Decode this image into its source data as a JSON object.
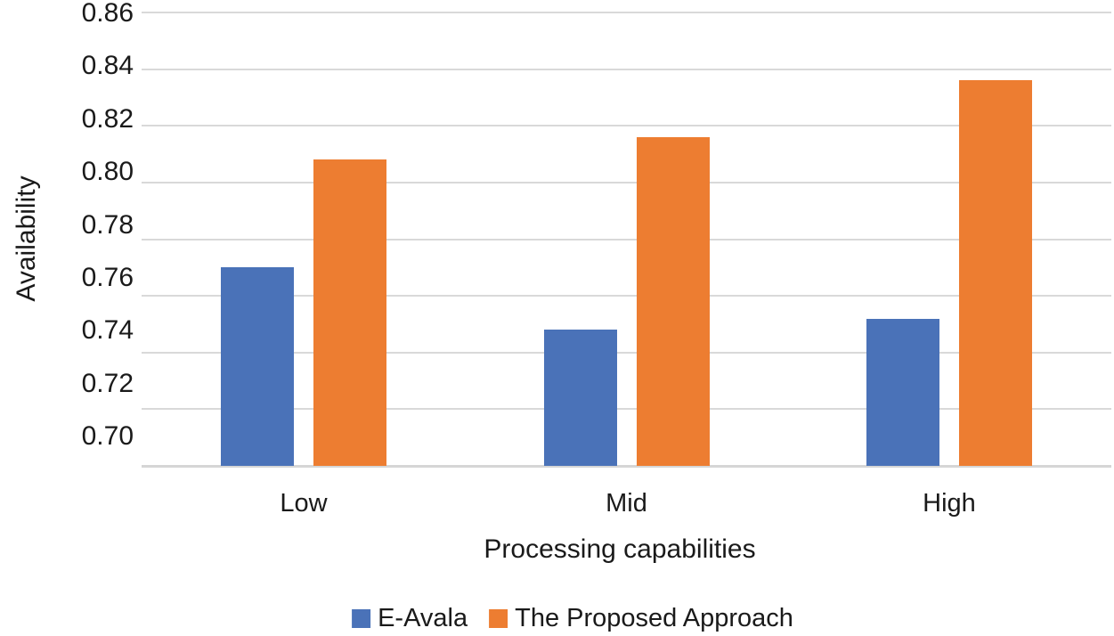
{
  "chart_data": {
    "type": "bar",
    "title": "",
    "categories": [
      "Low",
      "Mid",
      "High"
    ],
    "series": [
      {
        "name": "E-Avala",
        "color": "#4a72b8",
        "values": [
          0.77,
          0.748,
          0.752
        ]
      },
      {
        "name": "The Proposed Approach",
        "color": "#ed7d31",
        "values": [
          0.808,
          0.816,
          0.836
        ]
      }
    ],
    "xlabel": "Processing capabilities",
    "ylabel": "Availability",
    "ylim": [
      0.7,
      0.86
    ],
    "ytick_step": 0.02,
    "ytick_labels": [
      "0.86",
      "0.84",
      "0.82",
      "0.80",
      "0.78",
      "0.76",
      "0.74",
      "0.72",
      "0.70"
    ],
    "grid": true,
    "gridline_color": "#d9d9d9",
    "axis_line_color": "#d6d6d6",
    "text_color": "#1a1a1a",
    "legend_position": "bottom"
  }
}
